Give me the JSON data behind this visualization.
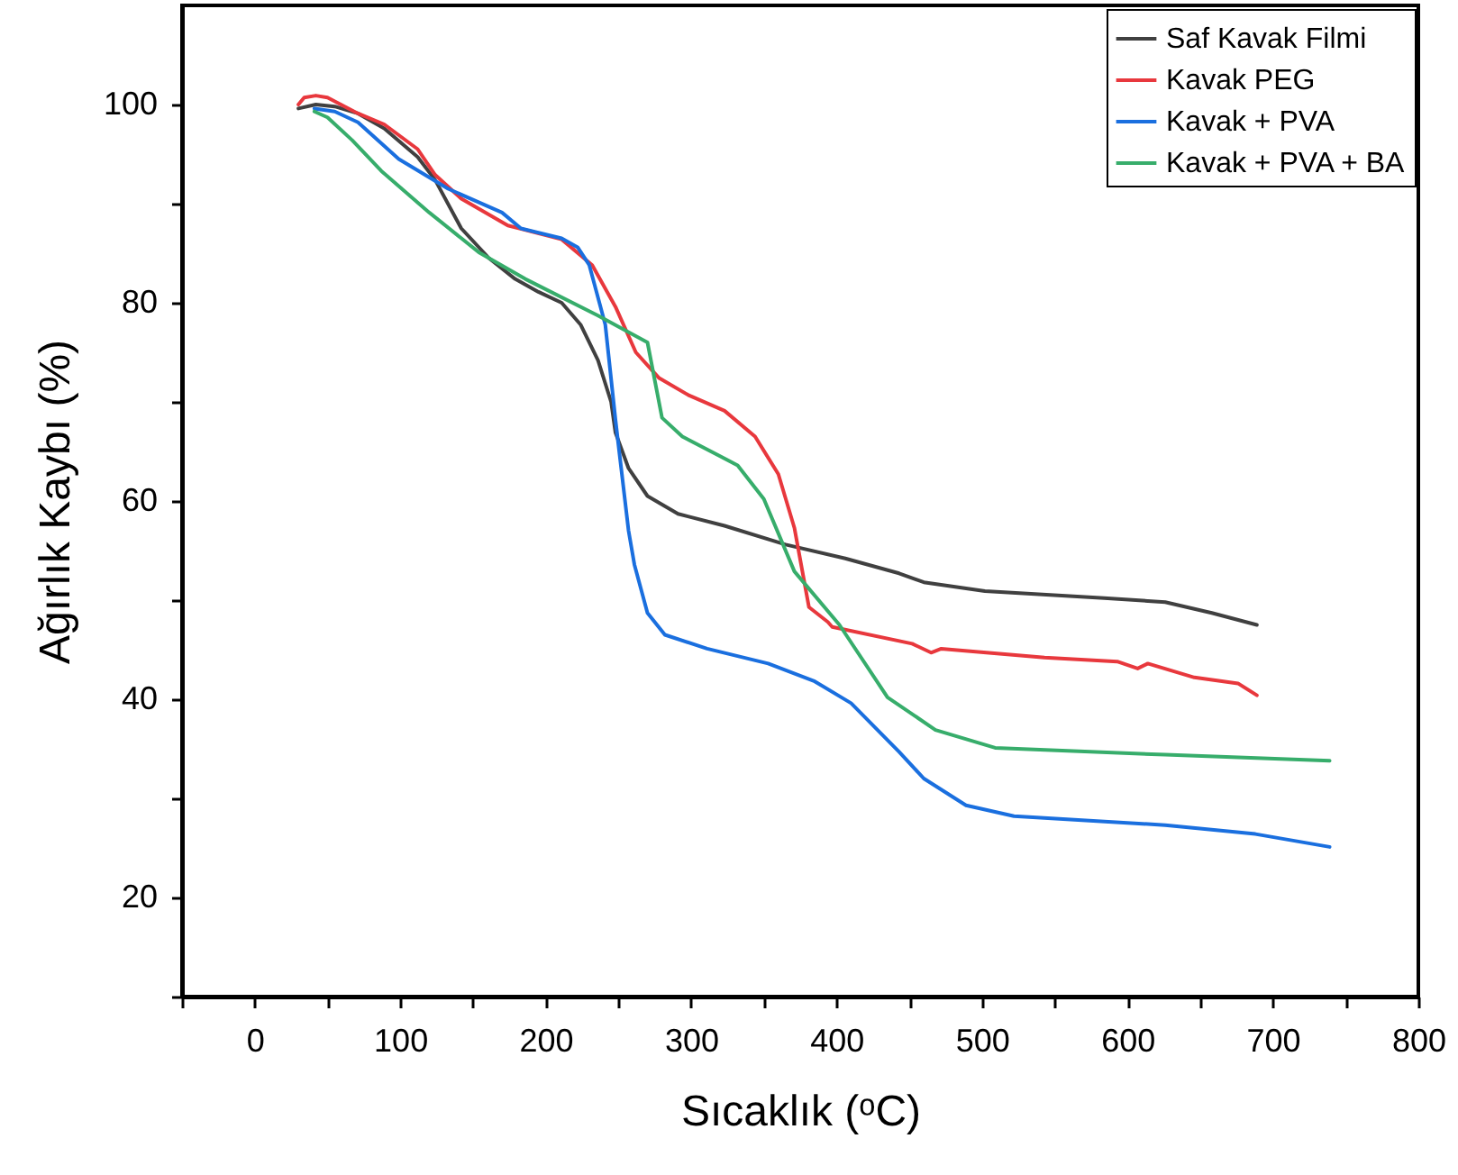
{
  "chart_data": {
    "type": "line",
    "xlabel": "Sıcaklık (ᵒC)",
    "ylabel": "Ağırlık Kaybı (%)",
    "xlim": [
      -50,
      800
    ],
    "ylim": [
      10,
      110
    ],
    "xticks": [
      {
        "value": -50,
        "label": null
      },
      0,
      {
        "value": 50,
        "label": null
      },
      100,
      {
        "value": 150,
        "label": null
      },
      200,
      {
        "value": 250,
        "label": null
      },
      300,
      {
        "value": 350,
        "label": null
      },
      400,
      {
        "value": 450,
        "label": null
      },
      500,
      {
        "value": 550,
        "label": null
      },
      600,
      {
        "value": 650,
        "label": null
      },
      700,
      {
        "value": 750,
        "label": null
      },
      800
    ],
    "yticks": [
      {
        "value": 10,
        "label": null
      },
      20,
      {
        "value": 30,
        "label": null
      },
      40,
      {
        "value": 50,
        "label": null
      },
      60,
      {
        "value": 70,
        "label": null
      },
      80,
      {
        "value": 90,
        "label": null
      },
      100
    ],
    "grid": false,
    "legend": "top right",
    "series": [
      {
        "name": "Saf Kavak Filmi",
        "color": "#404040",
        "x": [
          30,
          42,
          55,
          71,
          89,
          112,
          124,
          142,
          161,
          179,
          195,
          211,
          224,
          236,
          245,
          248,
          257,
          270,
          291,
          323,
          365,
          406,
          443,
          460,
          502,
          584,
          626,
          658,
          689
        ],
        "values": [
          99.6,
          100,
          99.8,
          99.1,
          97.6,
          94.7,
          92.4,
          87.5,
          84.5,
          82.4,
          81.1,
          80,
          77.8,
          74.2,
          70,
          66.9,
          63.3,
          60.5,
          58.7,
          57.5,
          55.6,
          54.2,
          52.7,
          51.8,
          50.9,
          50.2,
          49.8,
          48.7,
          47.5
        ]
      },
      {
        "name": "Kavak PEG",
        "color": "#e8383d",
        "x": [
          30,
          34,
          42,
          50,
          71,
          89,
          112,
          124,
          142,
          174,
          211,
          232,
          248,
          262,
          278,
          298,
          323,
          344,
          360,
          371,
          381,
          394,
          397,
          452,
          465,
          472,
          543,
          593,
          607,
          614,
          646,
          676,
          689
        ],
        "values": [
          100,
          100.7,
          100.9,
          100.7,
          99.1,
          98,
          95.5,
          92.9,
          90.5,
          87.8,
          86.4,
          83.8,
          79.6,
          75,
          72.4,
          70.7,
          69.1,
          66.5,
          62.7,
          57.3,
          49.3,
          47.8,
          47.3,
          45.6,
          44.7,
          45.1,
          44.2,
          43.8,
          43.1,
          43.6,
          42.2,
          41.6,
          40.4
        ]
      },
      {
        "name": "Kavak + PVA",
        "color": "#1a6fdf",
        "x": [
          41,
          55,
          71,
          99,
          133,
          170,
          183,
          211,
          222,
          230,
          241,
          248,
          257,
          261,
          270,
          282,
          311,
          353,
          385,
          410,
          443,
          460,
          489,
          522,
          626,
          688,
          739
        ],
        "values": [
          99.6,
          99.3,
          98.2,
          94.5,
          91.5,
          89.1,
          87.5,
          86.5,
          85.6,
          83.8,
          77.8,
          68.2,
          57,
          53.6,
          48.7,
          46.5,
          45.1,
          43.6,
          41.8,
          39.6,
          34.7,
          32,
          29.3,
          28.2,
          27.3,
          26.4,
          25.1
        ]
      },
      {
        "name": "Kavak + PVA + BA",
        "color": "#37ad6b",
        "x": [
          41,
          50,
          67,
          87,
          120,
          154,
          186,
          236,
          270,
          280,
          294,
          332,
          350,
          371,
          402,
          435,
          468,
          509,
          626,
          739
        ],
        "values": [
          99.3,
          98.7,
          96.4,
          93.3,
          89.1,
          85.1,
          82.4,
          78.7,
          76,
          68.4,
          66.5,
          63.6,
          60.2,
          52.9,
          47.5,
          40.2,
          36.9,
          35.1,
          34.4,
          33.8
        ]
      }
    ]
  }
}
